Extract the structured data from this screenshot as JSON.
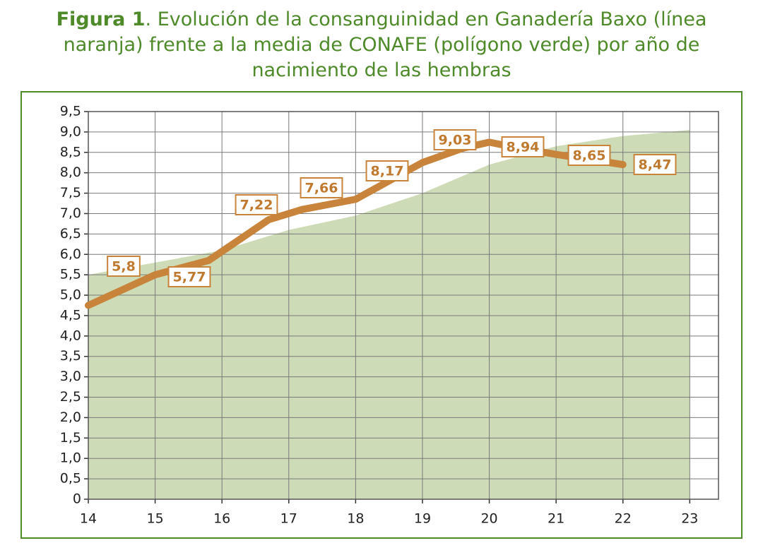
{
  "chart_data": {
    "type": "line",
    "title_label": "Figura 1",
    "title": ". Evolución de la consanguinidad en Ganadería Baxo (línea naranja) frente a la media de CONAFE (polígono verde) por año de nacimiento de las hembras",
    "xlim": [
      14,
      23.43
    ],
    "xticks": [
      14,
      15,
      16,
      17,
      18,
      19,
      20,
      21,
      22,
      23
    ],
    "ylim": [
      0,
      9.5
    ],
    "yticks": [
      0,
      {
        "value": 0.5,
        "label": "0,5"
      },
      {
        "value": 1,
        "label": "1,0"
      },
      {
        "value": 1.5,
        "label": "1,5"
      },
      {
        "value": 2,
        "label": "2,0"
      },
      {
        "value": 2.5,
        "label": "2,5"
      },
      {
        "value": 3,
        "label": "3,0"
      },
      {
        "value": 3.5,
        "label": "3,5"
      },
      {
        "value": 4,
        "label": "4,0"
      },
      {
        "value": 4.5,
        "label": "4,5"
      },
      {
        "value": 5,
        "label": "5,0"
      },
      {
        "value": 5.5,
        "label": "5,5"
      },
      {
        "value": 6,
        "label": "6,0"
      },
      {
        "value": 6.5,
        "label": "6,5"
      },
      {
        "value": 7,
        "label": "7,0"
      },
      {
        "value": 7.5,
        "label": "7,5"
      },
      {
        "value": 8,
        "label": "8,0"
      },
      {
        "value": 8.5,
        "label": "8,5"
      },
      {
        "value": 9,
        "label": "9,0"
      },
      {
        "value": 9.5,
        "label": "9,5"
      }
    ],
    "grid": true,
    "series": [
      {
        "type": "area",
        "color": "#cddbb6",
        "x": [
          14,
          15,
          16,
          17,
          18,
          19,
          20,
          21,
          22,
          23
        ],
        "values": [
          5.5,
          5.8,
          6.1,
          6.6,
          6.95,
          7.5,
          8.2,
          8.65,
          8.9,
          9.05
        ]
      },
      {
        "type": "line",
        "color": "#c8843a",
        "x": [
          14,
          15,
          15.8,
          16.7,
          17.2,
          18,
          19,
          19.6,
          20,
          20.3,
          21,
          22
        ],
        "values": [
          4.75,
          5.5,
          5.85,
          6.85,
          7.1,
          7.35,
          8.25,
          8.6,
          8.75,
          8.65,
          8.45,
          8.2
        ]
      }
    ],
    "annotations": [
      {
        "text": "5,8"
      },
      {
        "text": "5,77"
      },
      {
        "text": "7,22"
      },
      {
        "text": "7,66"
      },
      {
        "text": "8,17"
      },
      {
        "text": "9,03"
      },
      {
        "text": "8,94"
      },
      {
        "text": "8,65"
      },
      {
        "text": "8,47"
      }
    ]
  }
}
